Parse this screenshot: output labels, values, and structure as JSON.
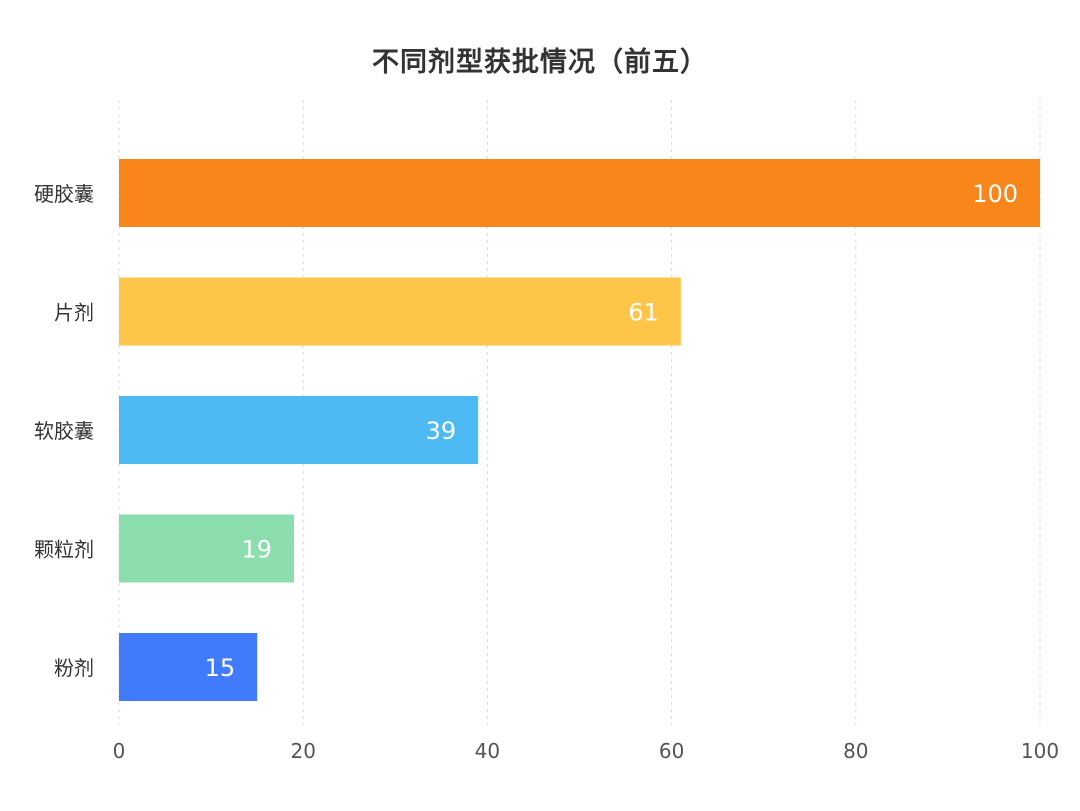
{
  "chart_data": {
    "type": "bar",
    "orientation": "horizontal",
    "title": "不同剂型获批情况（前五）",
    "categories": [
      "硬胶囊",
      "片剂",
      "软胶囊",
      "颗粒剂",
      "粉剂"
    ],
    "values": [
      100,
      61,
      39,
      19,
      15
    ],
    "colors": [
      "#F8861B",
      "#FEC548",
      "#4DBAF3",
      "#8BDDAE",
      "#3F7BFA"
    ],
    "data_labels": [
      "100",
      "61",
      "39",
      "19",
      "15"
    ],
    "xlim": [
      0,
      100
    ],
    "x_ticks": [
      0,
      20,
      40,
      60,
      80,
      100
    ],
    "x_tick_labels": [
      "0",
      "20",
      "40",
      "60",
      "80",
      "100"
    ],
    "xlabel": "",
    "ylabel": "",
    "grid": "vertical dashed",
    "legend": "none"
  }
}
